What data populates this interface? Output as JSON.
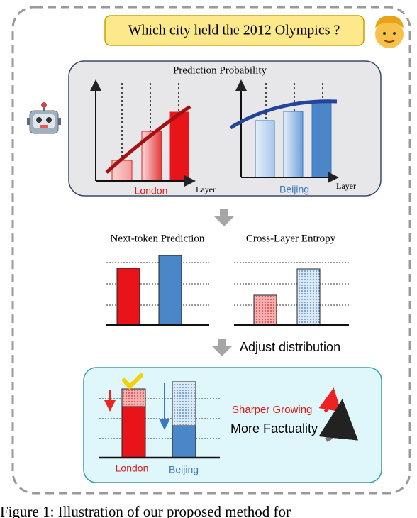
{
  "question": "Which city held the 2012 Olympics ?",
  "panel_top": {
    "title": "Prediction Probability",
    "left_label": "London",
    "left_axis": "Layer",
    "right_label": "Beijing",
    "right_axis": "Layer"
  },
  "panel_middle": {
    "left_title": "Next-token Prediction",
    "right_title": "Cross-Layer Entropy",
    "arrow_label": "Adjust distribution"
  },
  "panel_bottom": {
    "note_1": "Sharper Growing",
    "note_2": "More Factuality",
    "left_label": "London",
    "right_label": "Beijing"
  },
  "caption": "Figure 1: Illustration of our proposed method for"
}
